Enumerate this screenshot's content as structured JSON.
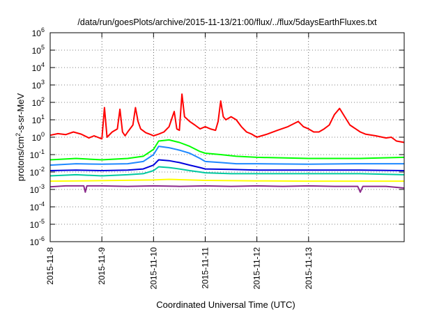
{
  "chart_data": {
    "type": "line",
    "title": "/data/run/goesPlots/archive/2015-11-13/21:00/flux/../flux/5daysEarthFluxes.txt",
    "xlabel": "Coordinated Universal Time (UTC)",
    "ylabel": {
      "base": "protons/cm",
      "sup": "2",
      "rest": "-s-sr-MeV"
    },
    "yscale": "log",
    "ylim": [
      1e-06,
      1000000.0
    ],
    "xlim_days": [
      0,
      6.85
    ],
    "x_start_date": "2015-11-08",
    "x_ticks": [
      {
        "label": "2015-11-8",
        "day": 0
      },
      {
        "label": "2015-11-9",
        "day": 1
      },
      {
        "label": "2015-11-10",
        "day": 2
      },
      {
        "label": "2015-11-11",
        "day": 3
      },
      {
        "label": "2015-11-12",
        "day": 4
      },
      {
        "label": "2015-11-13",
        "day": 5
      }
    ],
    "y_ticks": [
      {
        "base": "10",
        "exp": "6",
        "value": 1000000.0
      },
      {
        "base": "10",
        "exp": "5",
        "value": 100000.0
      },
      {
        "base": "10",
        "exp": "4",
        "value": 10000.0
      },
      {
        "base": "10",
        "exp": "3",
        "value": 1000.0
      },
      {
        "base": "10",
        "exp": "2",
        "value": 100.0
      },
      {
        "base": "10",
        "exp": "1",
        "value": 10.0
      },
      {
        "base": "10",
        "exp": "0",
        "value": 1.0
      },
      {
        "base": "10",
        "exp": "-1",
        "value": 0.1
      },
      {
        "base": "10",
        "exp": "-2",
        "value": 0.01
      },
      {
        "base": "10",
        "exp": "-3",
        "value": 0.001
      },
      {
        "base": "10",
        "exp": "-4",
        "value": 0.0001
      },
      {
        "base": "10",
        "exp": "-5",
        "value": 1e-05
      },
      {
        "base": "10",
        "exp": "-6",
        "value": 1e-06
      }
    ],
    "grid": true,
    "legend": "none",
    "series": [
      {
        "color": "#ff0000",
        "points": [
          [
            0,
            1.3
          ],
          [
            0.15,
            1.6
          ],
          [
            0.3,
            1.4
          ],
          [
            0.45,
            2.0
          ],
          [
            0.6,
            1.5
          ],
          [
            0.75,
            0.9
          ],
          [
            0.85,
            1.2
          ],
          [
            1.0,
            0.8
          ],
          [
            1.05,
            50
          ],
          [
            1.1,
            1.0
          ],
          [
            1.2,
            2.0
          ],
          [
            1.3,
            3.0
          ],
          [
            1.35,
            40
          ],
          [
            1.4,
            2.0
          ],
          [
            1.45,
            1.2
          ],
          [
            1.5,
            2.0
          ],
          [
            1.6,
            5
          ],
          [
            1.65,
            50
          ],
          [
            1.7,
            8
          ],
          [
            1.75,
            3
          ],
          [
            1.85,
            1.8
          ],
          [
            1.95,
            1.4
          ],
          [
            2.0,
            1.2
          ],
          [
            2.1,
            1.5
          ],
          [
            2.2,
            2.0
          ],
          [
            2.3,
            4
          ],
          [
            2.4,
            30
          ],
          [
            2.45,
            3
          ],
          [
            2.5,
            2.5
          ],
          [
            2.55,
            300
          ],
          [
            2.6,
            15
          ],
          [
            2.7,
            8
          ],
          [
            2.8,
            5
          ],
          [
            2.9,
            3
          ],
          [
            3.0,
            4
          ],
          [
            3.1,
            3
          ],
          [
            3.2,
            2.5
          ],
          [
            3.25,
            8
          ],
          [
            3.3,
            120
          ],
          [
            3.35,
            15
          ],
          [
            3.4,
            10
          ],
          [
            3.5,
            15
          ],
          [
            3.6,
            10
          ],
          [
            3.7,
            4
          ],
          [
            3.8,
            2
          ],
          [
            3.9,
            1.5
          ],
          [
            4.0,
            1.0
          ],
          [
            4.2,
            1.5
          ],
          [
            4.4,
            2.5
          ],
          [
            4.6,
            4
          ],
          [
            4.8,
            8
          ],
          [
            4.9,
            4
          ],
          [
            5.0,
            3
          ],
          [
            5.1,
            2
          ],
          [
            5.2,
            2
          ],
          [
            5.3,
            3
          ],
          [
            5.4,
            5
          ],
          [
            5.5,
            20
          ],
          [
            5.6,
            45
          ],
          [
            5.7,
            15
          ],
          [
            5.8,
            5
          ],
          [
            6.0,
            2
          ],
          [
            6.1,
            1.5
          ],
          [
            6.3,
            1.2
          ],
          [
            6.5,
            0.9
          ],
          [
            6.6,
            1.0
          ],
          [
            6.7,
            0.6
          ],
          [
            6.85,
            0.5
          ]
        ]
      },
      {
        "color": "#00ff00",
        "points": [
          [
            0,
            0.05
          ],
          [
            0.5,
            0.06
          ],
          [
            1.0,
            0.05
          ],
          [
            1.5,
            0.06
          ],
          [
            1.8,
            0.08
          ],
          [
            2.0,
            0.2
          ],
          [
            2.1,
            0.6
          ],
          [
            2.3,
            0.7
          ],
          [
            2.5,
            0.5
          ],
          [
            2.7,
            0.3
          ],
          [
            2.9,
            0.15
          ],
          [
            3.0,
            0.12
          ],
          [
            3.3,
            0.1
          ],
          [
            3.6,
            0.08
          ],
          [
            4.0,
            0.07
          ],
          [
            5.0,
            0.06
          ],
          [
            6.0,
            0.06
          ],
          [
            6.85,
            0.07
          ]
        ]
      },
      {
        "color": "#1e88ff",
        "points": [
          [
            0,
            0.025
          ],
          [
            0.5,
            0.03
          ],
          [
            1.0,
            0.028
          ],
          [
            1.5,
            0.03
          ],
          [
            1.8,
            0.04
          ],
          [
            2.0,
            0.1
          ],
          [
            2.1,
            0.3
          ],
          [
            2.3,
            0.25
          ],
          [
            2.5,
            0.18
          ],
          [
            2.7,
            0.12
          ],
          [
            2.9,
            0.06
          ],
          [
            3.0,
            0.04
          ],
          [
            3.3,
            0.035
          ],
          [
            3.6,
            0.03
          ],
          [
            4.0,
            0.03
          ],
          [
            5.0,
            0.028
          ],
          [
            6.0,
            0.03
          ],
          [
            6.85,
            0.03
          ]
        ]
      },
      {
        "color": "#0000dd",
        "points": [
          [
            0,
            0.012
          ],
          [
            0.5,
            0.013
          ],
          [
            1.0,
            0.012
          ],
          [
            1.5,
            0.013
          ],
          [
            1.8,
            0.015
          ],
          [
            2.0,
            0.025
          ],
          [
            2.1,
            0.05
          ],
          [
            2.3,
            0.045
          ],
          [
            2.5,
            0.035
          ],
          [
            2.7,
            0.025
          ],
          [
            2.9,
            0.018
          ],
          [
            3.0,
            0.015
          ],
          [
            3.5,
            0.014
          ],
          [
            4.0,
            0.013
          ],
          [
            5.0,
            0.013
          ],
          [
            6.0,
            0.013
          ],
          [
            6.85,
            0.012
          ]
        ]
      },
      {
        "color": "#00c8a0",
        "points": [
          [
            0,
            0.006
          ],
          [
            0.5,
            0.007
          ],
          [
            1.0,
            0.006
          ],
          [
            1.5,
            0.007
          ],
          [
            1.8,
            0.008
          ],
          [
            2.0,
            0.012
          ],
          [
            2.1,
            0.02
          ],
          [
            2.3,
            0.018
          ],
          [
            2.5,
            0.015
          ],
          [
            2.7,
            0.012
          ],
          [
            2.9,
            0.01
          ],
          [
            3.0,
            0.009
          ],
          [
            3.5,
            0.008
          ],
          [
            4.0,
            0.008
          ],
          [
            5.0,
            0.008
          ],
          [
            6.0,
            0.008
          ],
          [
            6.85,
            0.007
          ]
        ]
      },
      {
        "color": "#ffff00",
        "points": [
          [
            0,
            0.003
          ],
          [
            1.0,
            0.0032
          ],
          [
            2.0,
            0.0035
          ],
          [
            2.3,
            0.0038
          ],
          [
            3.0,
            0.0033
          ],
          [
            4.0,
            0.0031
          ],
          [
            5.0,
            0.003
          ],
          [
            6.0,
            0.003
          ],
          [
            6.85,
            0.003
          ]
        ]
      },
      {
        "color": "#8b2a8b",
        "points": [
          [
            0,
            0.0014
          ],
          [
            0.3,
            0.0016
          ],
          [
            0.65,
            0.0016
          ],
          [
            0.68,
            0.0007
          ],
          [
            0.71,
            0.0016
          ],
          [
            1.0,
            0.0016
          ],
          [
            1.5,
            0.0015
          ],
          [
            2.0,
            0.0016
          ],
          [
            2.5,
            0.0015
          ],
          [
            3.0,
            0.0016
          ],
          [
            3.5,
            0.0015
          ],
          [
            4.0,
            0.0016
          ],
          [
            4.5,
            0.0015
          ],
          [
            5.0,
            0.0016
          ],
          [
            5.5,
            0.0015
          ],
          [
            5.95,
            0.0015
          ],
          [
            6.0,
            0.0007
          ],
          [
            6.05,
            0.0015
          ],
          [
            6.5,
            0.0015
          ],
          [
            6.85,
            0.0012
          ]
        ]
      }
    ]
  }
}
